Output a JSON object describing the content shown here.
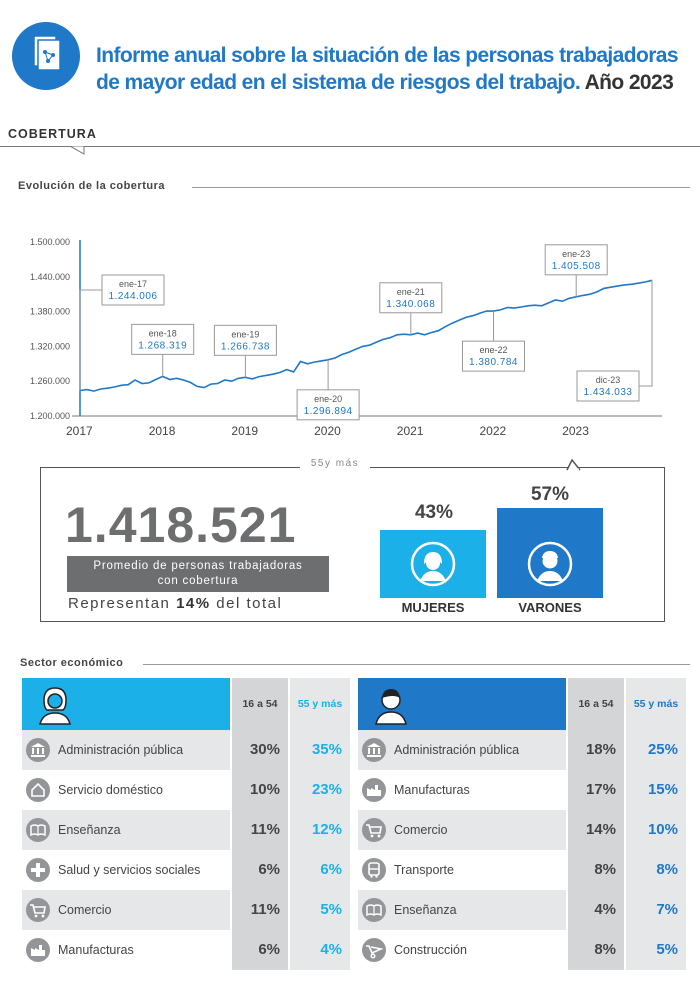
{
  "header": {
    "title_line1": "Informe anual sobre la situación de las personas trabajadoras",
    "title_line2": "de mayor edad en el sistema de riesgos  del trabajo.",
    "title_year": "Año 2023"
  },
  "section": {
    "label": "COBERTURA"
  },
  "chart_section": {
    "label": "Evolución de la cobertura"
  },
  "chart_data": {
    "type": "line",
    "title": "Evolución de la cobertura",
    "yticks": [
      "1.200.000",
      "1.260.000",
      "1.320.000",
      "1.380.000",
      "1.440.000",
      "1.500.000"
    ],
    "ylim": [
      1200000,
      1500000
    ],
    "xticks": [
      "2017",
      "2018",
      "2019",
      "2020",
      "2021",
      "2022",
      "2023"
    ],
    "color": "#1f78c8",
    "series": [
      {
        "points": [
          [
            "2017-01",
            1244006
          ],
          [
            "2017-02",
            1245500
          ],
          [
            "2017-03",
            1243000
          ],
          [
            "2017-04",
            1246500
          ],
          [
            "2017-05",
            1248000
          ],
          [
            "2017-06",
            1250000
          ],
          [
            "2017-07",
            1253000
          ],
          [
            "2017-08",
            1254000
          ],
          [
            "2017-09",
            1262000
          ],
          [
            "2017-10",
            1256000
          ],
          [
            "2017-11",
            1257000
          ],
          [
            "2017-12",
            1263000
          ],
          [
            "2018-01",
            1268319
          ],
          [
            "2018-02",
            1263000
          ],
          [
            "2018-03",
            1265000
          ],
          [
            "2018-04",
            1262000
          ],
          [
            "2018-05",
            1258000
          ],
          [
            "2018-06",
            1251000
          ],
          [
            "2018-07",
            1249000
          ],
          [
            "2018-08",
            1255000
          ],
          [
            "2018-09",
            1256000
          ],
          [
            "2018-10",
            1262000
          ],
          [
            "2018-11",
            1260000
          ],
          [
            "2018-12",
            1265000
          ],
          [
            "2019-01",
            1266738
          ],
          [
            "2019-02",
            1264000
          ],
          [
            "2019-03",
            1268000
          ],
          [
            "2019-04",
            1270000
          ],
          [
            "2019-05",
            1272000
          ],
          [
            "2019-06",
            1275000
          ],
          [
            "2019-07",
            1280000
          ],
          [
            "2019-08",
            1276000
          ],
          [
            "2019-09",
            1294000
          ],
          [
            "2019-10",
            1290000
          ],
          [
            "2019-11",
            1293000
          ],
          [
            "2019-12",
            1295000
          ],
          [
            "2020-01",
            1296894
          ],
          [
            "2020-02",
            1300000
          ],
          [
            "2020-03",
            1306000
          ],
          [
            "2020-04",
            1310000
          ],
          [
            "2020-05",
            1315000
          ],
          [
            "2020-06",
            1320000
          ],
          [
            "2020-07",
            1322000
          ],
          [
            "2020-08",
            1327000
          ],
          [
            "2020-09",
            1332000
          ],
          [
            "2020-10",
            1335000
          ],
          [
            "2020-11",
            1340000
          ],
          [
            "2020-12",
            1341000
          ],
          [
            "2021-01",
            1340068
          ],
          [
            "2021-02",
            1343000
          ],
          [
            "2021-03",
            1340000
          ],
          [
            "2021-04",
            1344000
          ],
          [
            "2021-05",
            1347000
          ],
          [
            "2021-06",
            1354000
          ],
          [
            "2021-07",
            1360000
          ],
          [
            "2021-08",
            1365000
          ],
          [
            "2021-09",
            1370000
          ],
          [
            "2021-10",
            1373000
          ],
          [
            "2021-11",
            1377000
          ],
          [
            "2021-12",
            1381000
          ],
          [
            "2022-01",
            1380784
          ],
          [
            "2022-02",
            1383000
          ],
          [
            "2022-03",
            1387000
          ],
          [
            "2022-04",
            1386000
          ],
          [
            "2022-05",
            1388000
          ],
          [
            "2022-06",
            1390000
          ],
          [
            "2022-07",
            1391000
          ],
          [
            "2022-08",
            1390000
          ],
          [
            "2022-09",
            1395000
          ],
          [
            "2022-10",
            1400000
          ],
          [
            "2022-11",
            1398000
          ],
          [
            "2022-12",
            1403000
          ],
          [
            "2023-01",
            1405508
          ],
          [
            "2023-02",
            1408000
          ],
          [
            "2023-03",
            1410000
          ],
          [
            "2023-04",
            1414000
          ],
          [
            "2023-05",
            1420000
          ],
          [
            "2023-06",
            1422000
          ],
          [
            "2023-07",
            1424000
          ],
          [
            "2023-08",
            1426000
          ],
          [
            "2023-09",
            1427000
          ],
          [
            "2023-10",
            1429000
          ],
          [
            "2023-11",
            1431000
          ],
          [
            "2023-12",
            1434033
          ]
        ]
      }
    ],
    "annotations": [
      {
        "month": "2017-01",
        "label": "ene-17",
        "value": "1.244.006",
        "placement": "above"
      },
      {
        "month": "2018-01",
        "label": "ene-18",
        "value": "1.268.319",
        "placement": "above"
      },
      {
        "month": "2019-01",
        "label": "ene-19",
        "value": "1.266.738",
        "placement": "above"
      },
      {
        "month": "2020-01",
        "label": "ene-20",
        "value": "1.296.894",
        "placement": "below"
      },
      {
        "month": "2021-01",
        "label": "ene-21",
        "value": "1.340.068",
        "placement": "above"
      },
      {
        "month": "2022-01",
        "label": "ene-22",
        "value": "1.380.784",
        "placement": "below"
      },
      {
        "month": "2023-01",
        "label": "ene-23",
        "value": "1.405.508",
        "placement": "above"
      },
      {
        "month": "2023-12",
        "label": "dic-23",
        "value": "1.434.033",
        "placement": "below"
      }
    ]
  },
  "kpi": {
    "tag": "55y más",
    "number": "1.418.521",
    "band_line1": "Promedio de personas trabajadoras",
    "band_line2": "con cobertura",
    "rep_prefix": "Representan",
    "rep_pct": "14%",
    "rep_suffix": "del total",
    "women_pct": "43%",
    "women_pct_value": 43,
    "women_label": "MUJERES",
    "men_pct": "57%",
    "men_pct_value": 57,
    "men_label": "VARONES",
    "women_color": "#1cb0e8",
    "men_color": "#1f78c8"
  },
  "sector_section": {
    "label": "Sector económico"
  },
  "women_table": {
    "col1": "16 a 54",
    "col2": "55 y más",
    "accent": "#1cb0e8",
    "rows": [
      {
        "label": "Administración pública",
        "icon": "government-building-icon",
        "v1": "30%",
        "v2": "35%"
      },
      {
        "label": "Servicio doméstico",
        "icon": "house-icon",
        "v1": "10%",
        "v2": "23%"
      },
      {
        "label": "Enseñanza",
        "icon": "book-icon",
        "v1": "11%",
        "v2": "12%"
      },
      {
        "label": "Salud y servicios sociales",
        "icon": "health-cross-icon",
        "v1": "6%",
        "v2": "6%"
      },
      {
        "label": "Comercio",
        "icon": "shopping-cart-icon",
        "v1": "11%",
        "v2": "5%"
      },
      {
        "label": "Manufacturas",
        "icon": "factory-icon",
        "v1": "6%",
        "v2": "4%"
      }
    ]
  },
  "men_table": {
    "col1": "16 a 54",
    "col2": "55 y más",
    "accent": "#1f78c8",
    "rows": [
      {
        "label": "Administración pública",
        "icon": "government-building-icon",
        "v1": "18%",
        "v2": "25%"
      },
      {
        "label": "Manufacturas",
        "icon": "factory-icon",
        "v1": "17%",
        "v2": "15%"
      },
      {
        "label": "Comercio",
        "icon": "shopping-cart-icon",
        "v1": "14%",
        "v2": "10%"
      },
      {
        "label": "Transporte",
        "icon": "bus-icon",
        "v1": "8%",
        "v2": "8%"
      },
      {
        "label": "Enseñanza",
        "icon": "book-icon",
        "v1": "4%",
        "v2": "7%"
      },
      {
        "label": "Construcción",
        "icon": "wheelbarrow-icon",
        "v1": "8%",
        "v2": "5%"
      }
    ]
  }
}
